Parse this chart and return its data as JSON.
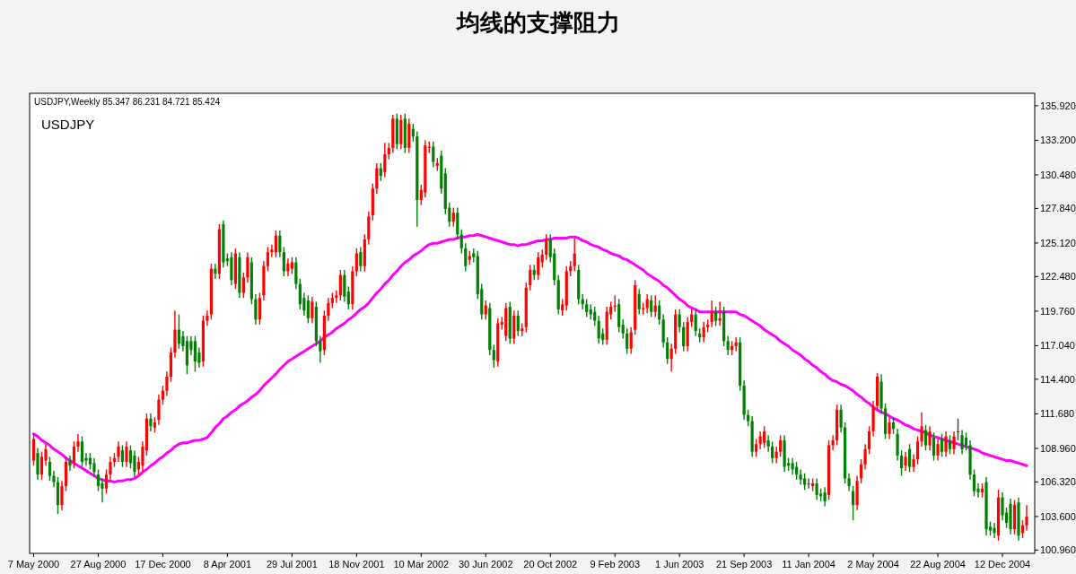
{
  "chart_data": {
    "type": "candlestick",
    "title": "均线的支撑阻力",
    "annotations": [
      "USDJPY,Weekly  85.347 86.231 84.721 85.424",
      "USDJPY"
    ],
    "ylim": [
      100.7,
      136.9
    ],
    "yticks": [
      {
        "value": 135.92,
        "label": "135.920"
      },
      {
        "value": 133.2,
        "label": "133.200"
      },
      {
        "value": 130.48,
        "label": "130.480"
      },
      {
        "value": 127.84,
        "label": "127.840"
      },
      {
        "value": 125.12,
        "label": "125.120"
      },
      {
        "value": 122.48,
        "label": "122.480"
      },
      {
        "value": 119.76,
        "label": "119.760"
      },
      {
        "value": 117.04,
        "label": "117.040"
      },
      {
        "value": 114.4,
        "label": "114.400"
      },
      {
        "value": 111.68,
        "label": "111.680"
      },
      {
        "value": 108.96,
        "label": "108.960"
      },
      {
        "value": 106.32,
        "label": "106.320"
      },
      {
        "value": 103.6,
        "label": "103.600"
      },
      {
        "value": 100.96,
        "label": "100.960"
      }
    ],
    "categories": [
      "7 May 2000",
      null,
      null,
      null,
      null,
      null,
      null,
      null,
      null,
      null,
      null,
      null,
      null,
      null,
      null,
      null,
      "27 Aug 2000",
      null,
      null,
      null,
      null,
      null,
      null,
      null,
      null,
      null,
      null,
      null,
      null,
      null,
      null,
      null,
      "17 Dec 2000",
      null,
      null,
      null,
      null,
      null,
      null,
      null,
      null,
      null,
      null,
      null,
      null,
      null,
      null,
      null,
      "8 Apr 2001",
      null,
      null,
      null,
      null,
      null,
      null,
      null,
      null,
      null,
      null,
      null,
      null,
      null,
      null,
      null,
      "29 Jul 2001",
      null,
      null,
      null,
      null,
      null,
      null,
      null,
      null,
      null,
      null,
      null,
      null,
      null,
      null,
      null,
      "18 Nov 2001",
      null,
      null,
      null,
      null,
      null,
      null,
      null,
      null,
      null,
      null,
      null,
      null,
      null,
      null,
      null,
      "10 Mar 2002",
      null,
      null,
      null,
      null,
      null,
      null,
      null,
      null,
      null,
      null,
      null,
      null,
      null,
      null,
      null,
      "30 Jun 2002",
      null,
      null,
      null,
      null,
      null,
      null,
      null,
      null,
      null,
      null,
      null,
      null,
      null,
      null,
      null,
      "20 Oct 2002",
      null,
      null,
      null,
      null,
      null,
      null,
      null,
      null,
      null,
      null,
      null,
      null,
      null,
      null,
      null,
      "9 Feb 2003",
      null,
      null,
      null,
      null,
      null,
      null,
      null,
      null,
      null,
      null,
      null,
      null,
      null,
      null,
      null,
      "1 Jun 2003",
      null,
      null,
      null,
      null,
      null,
      null,
      null,
      null,
      null,
      null,
      null,
      null,
      null,
      null,
      null,
      "21 Sep 2003",
      null,
      null,
      null,
      null,
      null,
      null,
      null,
      null,
      null,
      null,
      null,
      null,
      null,
      null,
      null,
      "11 Jan 2004",
      null,
      null,
      null,
      null,
      null,
      null,
      null,
      null,
      null,
      null,
      null,
      null,
      null,
      null,
      null,
      "2 May 2004",
      null,
      null,
      null,
      null,
      null,
      null,
      null,
      null,
      null,
      null,
      null,
      null,
      null,
      null,
      null,
      "22 Aug 2004",
      null,
      null,
      null,
      null,
      null,
      null,
      null,
      null,
      null,
      null,
      null,
      null,
      null,
      null,
      null,
      "12 Dec 2004",
      null,
      null,
      null,
      null,
      null,
      null
    ],
    "ohlc": [
      [
        108.0,
        110.1,
        107.6,
        109.7
      ],
      [
        108.6,
        109.0,
        106.5,
        106.9
      ],
      [
        106.9,
        108.7,
        106.5,
        108.3
      ],
      [
        108.0,
        109.3,
        107.6,
        108.9
      ],
      [
        107.9,
        108.3,
        106.4,
        106.8
      ],
      [
        106.8,
        107.2,
        105.9,
        106.3
      ],
      [
        106.3,
        106.7,
        103.8,
        104.5
      ],
      [
        104.5,
        106.4,
        104.1,
        106.0
      ],
      [
        106.0,
        108.3,
        105.6,
        107.9
      ],
      [
        108.0,
        108.4,
        107.2,
        107.6
      ],
      [
        107.8,
        109.5,
        107.4,
        109.1
      ],
      [
        109.1,
        110.1,
        108.7,
        109.5
      ],
      [
        109.5,
        109.9,
        107.5,
        107.9
      ],
      [
        108.2,
        108.6,
        107.6,
        108.0
      ],
      [
        108.2,
        108.6,
        107.3,
        107.7
      ],
      [
        107.8,
        108.2,
        106.7,
        107.1
      ],
      [
        106.9,
        107.3,
        105.6,
        106.0
      ],
      [
        106.2,
        106.6,
        104.7,
        105.8
      ],
      [
        105.8,
        107.3,
        105.4,
        106.9
      ],
      [
        106.9,
        108.3,
        106.5,
        107.9
      ],
      [
        107.9,
        108.6,
        107.5,
        108.2
      ],
      [
        108.3,
        109.5,
        107.9,
        109.1
      ],
      [
        108.8,
        109.2,
        107.5,
        107.9
      ],
      [
        107.9,
        109.5,
        107.5,
        109.1
      ],
      [
        108.8,
        109.2,
        107.4,
        107.8
      ],
      [
        108.4,
        108.8,
        106.7,
        107.1
      ],
      [
        107.3,
        108.3,
        106.9,
        107.9
      ],
      [
        107.6,
        109.5,
        107.2,
        109.1
      ],
      [
        108.8,
        111.7,
        108.4,
        111.3
      ],
      [
        111.3,
        111.7,
        110.3,
        110.7
      ],
      [
        110.6,
        111.4,
        110.2,
        111.0
      ],
      [
        111.2,
        113.2,
        110.8,
        112.8
      ],
      [
        112.8,
        113.9,
        112.4,
        113.5
      ],
      [
        113.5,
        115.0,
        113.1,
        114.6
      ],
      [
        114.6,
        116.9,
        114.2,
        116.5
      ],
      [
        116.5,
        119.8,
        116.1,
        118.3
      ],
      [
        118.3,
        119.5,
        116.8,
        117.2
      ],
      [
        117.8,
        118.2,
        116.6,
        117.0
      ],
      [
        117.4,
        117.8,
        114.8,
        115.5
      ],
      [
        117.4,
        117.8,
        116.3,
        116.7
      ],
      [
        117.4,
        117.8,
        115.0,
        115.8
      ],
      [
        116.5,
        116.9,
        115.3,
        115.7
      ],
      [
        115.8,
        119.4,
        115.4,
        119.0
      ],
      [
        119.0,
        119.8,
        118.6,
        119.4
      ],
      [
        119.5,
        123.5,
        119.1,
        123.1
      ],
      [
        123.1,
        123.5,
        122.3,
        122.7
      ],
      [
        122.7,
        126.6,
        122.3,
        126.2
      ],
      [
        126.6,
        126.9,
        123.2,
        123.6
      ],
      [
        123.9,
        124.3,
        123.3,
        123.7
      ],
      [
        124.0,
        124.4,
        121.8,
        122.2
      ],
      [
        121.9,
        124.7,
        121.5,
        124.3
      ],
      [
        124.0,
        124.4,
        120.8,
        121.2
      ],
      [
        121.2,
        122.8,
        120.8,
        122.4
      ],
      [
        122.4,
        124.4,
        122.0,
        124.0
      ],
      [
        123.6,
        124.0,
        120.3,
        120.7
      ],
      [
        120.7,
        121.1,
        118.7,
        119.1
      ],
      [
        119.1,
        121.2,
        118.7,
        120.8
      ],
      [
        121.0,
        123.7,
        120.6,
        123.3
      ],
      [
        123.3,
        124.8,
        122.9,
        124.4
      ],
      [
        124.4,
        125.0,
        124.0,
        124.6
      ],
      [
        124.4,
        126.1,
        124.0,
        125.7
      ],
      [
        125.7,
        126.1,
        124.0,
        124.4
      ],
      [
        124.4,
        124.8,
        122.5,
        122.9
      ],
      [
        122.9,
        123.9,
        122.5,
        123.5
      ],
      [
        123.1,
        124.0,
        122.7,
        123.6
      ],
      [
        123.6,
        124.0,
        121.5,
        121.9
      ],
      [
        121.9,
        122.3,
        119.9,
        120.3
      ],
      [
        120.8,
        121.2,
        119.4,
        119.8
      ],
      [
        120.6,
        121.0,
        118.8,
        119.2
      ],
      [
        119.2,
        120.9,
        118.8,
        120.5
      ],
      [
        120.1,
        120.5,
        117.0,
        117.4
      ],
      [
        117.4,
        117.8,
        115.7,
        116.6
      ],
      [
        116.7,
        119.8,
        116.3,
        119.4
      ],
      [
        119.4,
        120.8,
        119.0,
        120.4
      ],
      [
        120.4,
        121.2,
        120.0,
        120.8
      ],
      [
        120.8,
        121.4,
        120.4,
        121.0
      ],
      [
        121.0,
        123.0,
        120.6,
        122.6
      ],
      [
        122.6,
        123.0,
        120.5,
        120.9
      ],
      [
        121.3,
        121.7,
        119.9,
        120.3
      ],
      [
        120.3,
        123.3,
        119.9,
        122.9
      ],
      [
        122.9,
        124.7,
        122.5,
        124.3
      ],
      [
        124.4,
        124.8,
        122.9,
        123.3
      ],
      [
        123.3,
        125.8,
        122.9,
        125.4
      ],
      [
        125.4,
        127.6,
        125.0,
        127.2
      ],
      [
        127.3,
        129.8,
        126.9,
        129.4
      ],
      [
        129.4,
        131.4,
        129.0,
        131.0
      ],
      [
        131.0,
        131.4,
        130.0,
        130.4
      ],
      [
        130.7,
        133.0,
        130.3,
        132.1
      ],
      [
        132.1,
        133.0,
        131.7,
        132.6
      ],
      [
        132.6,
        135.2,
        132.2,
        134.9
      ],
      [
        134.9,
        135.3,
        132.5,
        132.9
      ],
      [
        132.9,
        135.2,
        132.5,
        134.8
      ],
      [
        134.9,
        135.3,
        132.2,
        132.6
      ],
      [
        132.6,
        134.9,
        132.2,
        134.5
      ],
      [
        134.1,
        134.5,
        133.1,
        133.5
      ],
      [
        133.5,
        133.9,
        126.4,
        128.5
      ],
      [
        128.5,
        129.7,
        128.1,
        129.3
      ],
      [
        129.1,
        133.2,
        128.7,
        132.8
      ],
      [
        132.6,
        133.1,
        132.2,
        132.7
      ],
      [
        132.7,
        133.1,
        131.1,
        131.5
      ],
      [
        131.2,
        131.8,
        130.8,
        131.4
      ],
      [
        132.0,
        132.4,
        129.0,
        129.4
      ],
      [
        130.6,
        131.0,
        127.4,
        127.8
      ],
      [
        127.9,
        128.3,
        126.4,
        126.8
      ],
      [
        126.8,
        127.9,
        126.4,
        127.5
      ],
      [
        127.5,
        127.9,
        125.4,
        125.8
      ],
      [
        125.8,
        126.2,
        124.3,
        124.7
      ],
      [
        124.7,
        125.1,
        122.9,
        123.3
      ],
      [
        123.8,
        124.5,
        123.4,
        124.1
      ],
      [
        124.3,
        124.7,
        123.6,
        124.0
      ],
      [
        124.1,
        124.5,
        120.7,
        121.1
      ],
      [
        121.5,
        121.9,
        119.1,
        119.5
      ],
      [
        119.5,
        120.6,
        119.1,
        120.2
      ],
      [
        120.0,
        120.4,
        116.3,
        116.7
      ],
      [
        116.7,
        117.1,
        115.3,
        115.9
      ],
      [
        115.8,
        119.2,
        115.4,
        118.8
      ],
      [
        118.7,
        119.3,
        118.3,
        118.9
      ],
      [
        117.8,
        120.4,
        117.4,
        120.0
      ],
      [
        120.1,
        120.5,
        117.2,
        117.6
      ],
      [
        117.6,
        119.8,
        117.2,
        119.4
      ],
      [
        119.4,
        119.8,
        117.8,
        118.2
      ],
      [
        118.2,
        118.8,
        117.8,
        118.4
      ],
      [
        118.5,
        122.0,
        118.1,
        121.6
      ],
      [
        121.8,
        123.4,
        121.4,
        123.0
      ],
      [
        123.0,
        123.4,
        122.2,
        122.6
      ],
      [
        122.6,
        124.4,
        122.2,
        124.0
      ],
      [
        123.6,
        124.6,
        123.2,
        124.2
      ],
      [
        124.2,
        125.8,
        123.8,
        125.4
      ],
      [
        125.4,
        125.8,
        123.6,
        124.0
      ],
      [
        124.3,
        124.7,
        121.8,
        122.2
      ],
      [
        122.2,
        122.6,
        119.5,
        119.9
      ],
      [
        119.8,
        120.7,
        119.4,
        120.3
      ],
      [
        120.2,
        123.3,
        119.8,
        122.9
      ],
      [
        122.9,
        123.7,
        122.5,
        123.3
      ],
      [
        123.3,
        125.5,
        122.9,
        124.3
      ],
      [
        123.0,
        123.4,
        120.3,
        120.7
      ],
      [
        120.7,
        121.1,
        119.9,
        120.3
      ],
      [
        120.3,
        120.7,
        119.3,
        119.7
      ],
      [
        119.9,
        120.3,
        119.1,
        119.5
      ],
      [
        119.7,
        120.1,
        118.6,
        119.0
      ],
      [
        119.0,
        119.4,
        117.2,
        117.6
      ],
      [
        118.0,
        118.4,
        117.1,
        117.5
      ],
      [
        117.5,
        120.1,
        117.1,
        119.7
      ],
      [
        119.5,
        120.5,
        119.1,
        120.1
      ],
      [
        120.1,
        121.0,
        119.7,
        120.2
      ],
      [
        120.3,
        120.7,
        118.1,
        118.5
      ],
      [
        118.7,
        119.1,
        117.6,
        118.0
      ],
      [
        118.0,
        118.4,
        116.4,
        116.8
      ],
      [
        116.8,
        118.5,
        116.4,
        118.1
      ],
      [
        118.3,
        122.2,
        117.9,
        121.8
      ],
      [
        121.1,
        121.5,
        119.5,
        119.9
      ],
      [
        119.9,
        120.4,
        119.5,
        120.0
      ],
      [
        120.0,
        121.1,
        119.6,
        120.7
      ],
      [
        120.6,
        121.0,
        119.3,
        119.7
      ],
      [
        119.7,
        121.0,
        119.3,
        120.2
      ],
      [
        120.2,
        120.6,
        118.7,
        119.1
      ],
      [
        119.1,
        119.5,
        116.9,
        117.3
      ],
      [
        117.3,
        117.7,
        115.6,
        116.0
      ],
      [
        116.0,
        117.2,
        115.0,
        116.8
      ],
      [
        116.8,
        119.9,
        116.4,
        119.5
      ],
      [
        119.5,
        119.9,
        118.1,
        118.5
      ],
      [
        118.5,
        118.9,
        116.6,
        117.0
      ],
      [
        117.0,
        119.3,
        116.6,
        118.9
      ],
      [
        118.9,
        119.9,
        118.5,
        119.5
      ],
      [
        119.5,
        119.9,
        117.8,
        118.2
      ],
      [
        118.0,
        118.4,
        117.3,
        117.7
      ],
      [
        117.7,
        118.9,
        117.3,
        118.5
      ],
      [
        118.5,
        119.1,
        118.1,
        118.7
      ],
      [
        118.9,
        120.6,
        118.5,
        119.7
      ],
      [
        119.7,
        120.1,
        118.6,
        119.0
      ],
      [
        119.0,
        120.5,
        118.6,
        119.2
      ],
      [
        119.7,
        120.1,
        117.0,
        117.4
      ],
      [
        117.4,
        117.8,
        116.3,
        116.7
      ],
      [
        116.7,
        117.4,
        116.3,
        117.0
      ],
      [
        117.0,
        117.7,
        116.6,
        117.3
      ],
      [
        117.3,
        117.7,
        113.5,
        113.9
      ],
      [
        113.9,
        114.3,
        111.2,
        111.6
      ],
      [
        111.6,
        112.0,
        110.7,
        111.1
      ],
      [
        111.1,
        111.5,
        108.3,
        108.7
      ],
      [
        108.7,
        109.7,
        108.3,
        109.3
      ],
      [
        109.3,
        110.3,
        108.9,
        109.9
      ],
      [
        109.4,
        110.7,
        109.0,
        110.3
      ],
      [
        109.6,
        110.0,
        108.7,
        109.1
      ],
      [
        109.1,
        109.5,
        107.8,
        108.2
      ],
      [
        108.2,
        109.1,
        107.8,
        108.7
      ],
      [
        108.7,
        110.0,
        108.3,
        109.6
      ],
      [
        109.6,
        110.0,
        107.1,
        107.5
      ],
      [
        107.8,
        108.2,
        107.2,
        107.6
      ],
      [
        107.8,
        108.2,
        106.9,
        107.3
      ],
      [
        107.5,
        107.9,
        106.5,
        106.9
      ],
      [
        106.9,
        107.3,
        106.1,
        106.5
      ],
      [
        106.6,
        107.0,
        105.7,
        106.1
      ],
      [
        106.2,
        106.6,
        105.8,
        106.2
      ],
      [
        106.0,
        106.6,
        105.6,
        106.2
      ],
      [
        106.2,
        106.6,
        104.9,
        105.3
      ],
      [
        105.4,
        105.8,
        104.8,
        105.2
      ],
      [
        105.5,
        105.9,
        104.4,
        104.8
      ],
      [
        105.3,
        109.6,
        104.9,
        109.2
      ],
      [
        109.2,
        110.0,
        108.8,
        109.6
      ],
      [
        109.6,
        112.4,
        109.2,
        112.0
      ],
      [
        112.0,
        112.4,
        110.2,
        110.6
      ],
      [
        110.6,
        111.0,
        106.2,
        106.6
      ],
      [
        106.6,
        107.0,
        105.6,
        106.0
      ],
      [
        105.6,
        106.0,
        103.3,
        104.5
      ],
      [
        104.5,
        106.8,
        104.1,
        106.4
      ],
      [
        106.6,
        108.1,
        106.2,
        107.7
      ],
      [
        107.7,
        109.3,
        107.3,
        108.9
      ],
      [
        108.9,
        110.7,
        108.5,
        110.3
      ],
      [
        110.3,
        112.7,
        109.9,
        112.3
      ],
      [
        112.3,
        114.9,
        111.9,
        114.6
      ],
      [
        114.2,
        114.8,
        111.7,
        112.1
      ],
      [
        112.1,
        112.5,
        109.7,
        110.1
      ],
      [
        110.1,
        111.4,
        109.7,
        111.0
      ],
      [
        111.0,
        111.4,
        110.1,
        110.5
      ],
      [
        110.1,
        110.5,
        108.0,
        108.4
      ],
      [
        108.4,
        108.8,
        106.8,
        107.4
      ],
      [
        107.6,
        108.7,
        107.2,
        108.3
      ],
      [
        108.9,
        109.3,
        107.1,
        107.5
      ],
      [
        107.5,
        108.5,
        107.1,
        108.1
      ],
      [
        108.1,
        109.9,
        107.7,
        109.5
      ],
      [
        109.5,
        111.8,
        109.1,
        110.7
      ],
      [
        110.4,
        110.8,
        108.8,
        109.2
      ],
      [
        109.2,
        110.7,
        108.8,
        110.3
      ],
      [
        109.8,
        110.2,
        108.0,
        108.4
      ],
      [
        108.4,
        109.7,
        108.0,
        109.3
      ],
      [
        109.7,
        110.1,
        108.3,
        108.7
      ],
      [
        108.7,
        110.3,
        108.3,
        109.9
      ],
      [
        109.6,
        110.0,
        108.5,
        108.9
      ],
      [
        108.9,
        110.3,
        108.5,
        109.9
      ],
      [
        110.3,
        111.3,
        109.6,
        110.3
      ],
      [
        110.0,
        110.4,
        108.5,
        108.9
      ],
      [
        109.8,
        110.2,
        108.8,
        109.2
      ],
      [
        109.2,
        109.6,
        106.5,
        106.9
      ],
      [
        106.9,
        107.3,
        105.2,
        105.6
      ],
      [
        105.8,
        106.2,
        105.1,
        105.5
      ],
      [
        105.5,
        106.2,
        105.1,
        105.8
      ],
      [
        106.3,
        106.7,
        102.1,
        102.6
      ],
      [
        102.8,
        103.2,
        102.1,
        102.5
      ],
      [
        102.7,
        103.1,
        101.9,
        102.3
      ],
      [
        102.1,
        105.7,
        101.7,
        105.1
      ],
      [
        105.1,
        105.5,
        103.3,
        103.7
      ],
      [
        103.9,
        104.3,
        102.7,
        103.1
      ],
      [
        104.6,
        105.0,
        102.2,
        102.6
      ],
      [
        102.6,
        104.9,
        102.2,
        104.5
      ],
      [
        104.7,
        105.1,
        101.7,
        102.1
      ],
      [
        102.3,
        103.3,
        101.9,
        102.9
      ],
      [
        102.9,
        104.5,
        102.5,
        103.6
      ]
    ],
    "colors": [
      "#ff0000",
      "#008000",
      "#ff0000",
      "#ff0000",
      "#008000",
      "#008000",
      "#008000",
      "#ff0000",
      "#ff0000",
      "#008000",
      "#ff0000",
      "#ff0000",
      "#008000",
      "#008000",
      "#008000",
      "#008000",
      "#008000",
      "#008000",
      "#ff0000",
      "#ff0000",
      "#ff0000",
      "#ff0000",
      "#008000",
      "#ff0000",
      "#008000",
      "#008000",
      "#ff0000",
      "#ff0000",
      "#ff0000",
      "#008000",
      "#ff0000",
      "#ff0000",
      "#ff0000",
      "#ff0000",
      "#ff0000",
      "#ff0000",
      "#008000",
      "#008000",
      "#008000",
      "#008000",
      "#008000",
      "#008000",
      "#ff0000",
      "#ff0000",
      "#ff0000",
      "#008000",
      "#ff0000",
      "#008000",
      "#008000",
      "#008000",
      "#ff0000",
      "#008000",
      "#ff0000",
      "#ff0000",
      "#008000",
      "#008000",
      "#ff0000",
      "#ff0000",
      "#ff0000",
      "#ff0000",
      "#ff0000",
      "#008000",
      "#008000",
      "#ff0000",
      "#ff0000",
      "#008000",
      "#008000",
      "#008000",
      "#008000",
      "#ff0000",
      "#008000",
      "#008000",
      "#ff0000",
      "#ff0000",
      "#ff0000",
      "#ff0000",
      "#ff0000",
      "#008000",
      "#008000",
      "#ff0000",
      "#ff0000",
      "#008000",
      "#ff0000",
      "#ff0000",
      "#ff0000",
      "#ff0000",
      "#008000",
      "#ff0000",
      "#ff0000",
      "#ff0000",
      "#008000",
      "#ff0000",
      "#008000",
      "#ff0000",
      "#008000",
      "#008000",
      "#ff0000",
      "#ff0000",
      "#ff0000",
      "#008000",
      "#ff0000",
      "#008000",
      "#008000",
      "#008000",
      "#ff0000",
      "#008000",
      "#008000",
      "#008000",
      "#ff0000",
      "#008000",
      "#008000",
      "#008000",
      "#ff0000",
      "#008000",
      "#008000",
      "#ff0000",
      "#ff0000",
      "#ff0000",
      "#008000",
      "#ff0000",
      "#008000",
      "#ff0000",
      "#ff0000",
      "#ff0000",
      "#008000",
      "#ff0000",
      "#ff0000",
      "#ff0000",
      "#008000",
      "#008000",
      "#008000",
      "#ff0000",
      "#ff0000",
      "#ff0000",
      "#ff0000",
      "#008000",
      "#008000",
      "#008000",
      "#008000",
      "#008000",
      "#008000",
      "#008000",
      "#ff0000",
      "#ff0000",
      "#ff0000",
      "#008000",
      "#008000",
      "#008000",
      "#ff0000",
      "#ff0000",
      "#008000",
      "#ff0000",
      "#ff0000",
      "#008000",
      "#ff0000",
      "#008000",
      "#008000",
      "#008000",
      "#ff0000",
      "#ff0000",
      "#008000",
      "#008000",
      "#ff0000",
      "#ff0000",
      "#008000",
      "#008000",
      "#ff0000",
      "#ff0000",
      "#ff0000",
      "#008000",
      "#ff0000",
      "#008000",
      "#008000",
      "#ff0000",
      "#ff0000",
      "#008000",
      "#008000",
      "#008000",
      "#008000",
      "#ff0000",
      "#ff0000",
      "#ff0000",
      "#008000",
      "#008000",
      "#ff0000",
      "#ff0000",
      "#008000",
      "#008000",
      "#008000",
      "#008000",
      "#008000",
      "#008000",
      "#404040",
      "#ff0000",
      "#008000",
      "#008000",
      "#008000",
      "#ff0000",
      "#ff0000",
      "#ff0000",
      "#008000",
      "#008000",
      "#008000",
      "#008000",
      "#ff0000",
      "#ff0000",
      "#ff0000",
      "#ff0000",
      "#ff0000",
      "#ff0000",
      "#008000",
      "#008000",
      "#ff0000",
      "#008000",
      "#008000",
      "#008000",
      "#ff0000",
      "#008000",
      "#ff0000",
      "#ff0000",
      "#ff0000",
      "#008000",
      "#ff0000",
      "#008000",
      "#ff0000",
      "#008000",
      "#ff0000",
      "#008000",
      "#ff0000",
      "#404040",
      "#008000",
      "#008000",
      "#008000",
      "#008000",
      "#008000",
      "#ff0000",
      "#008000",
      "#008000",
      "#008000",
      "#ff0000",
      "#008000",
      "#008000",
      "#008000",
      "#ff0000",
      "#008000",
      "#ff0000",
      "#ff0000"
    ],
    "series": [
      {
        "type": "line",
        "color": "#ff00ff",
        "values": [
          110.1,
          109.9,
          109.6,
          109.4,
          109.2,
          108.9,
          108.7,
          108.5,
          108.2,
          108.0,
          107.8,
          107.6,
          107.4,
          107.2,
          107.0,
          106.8,
          106.6,
          106.5,
          106.4,
          106.4,
          106.3,
          106.4,
          106.4,
          106.5,
          106.5,
          106.6,
          106.8,
          107.1,
          107.3,
          107.6,
          107.8,
          108.1,
          108.3,
          108.6,
          108.8,
          109.1,
          109.3,
          109.4,
          109.4,
          109.5,
          109.6,
          109.6,
          109.7,
          109.8,
          110.2,
          110.6,
          110.9,
          111.3,
          111.5,
          111.8,
          112.0,
          112.3,
          112.5,
          112.7,
          113.0,
          113.2,
          113.5,
          113.9,
          114.2,
          114.5,
          114.8,
          115.2,
          115.5,
          115.8,
          116.0,
          116.2,
          116.4,
          116.6,
          116.8,
          117.0,
          117.2,
          117.4,
          117.7,
          117.9,
          118.1,
          118.4,
          118.6,
          118.8,
          119.1,
          119.3,
          119.6,
          119.9,
          120.1,
          120.4,
          120.8,
          121.2,
          121.5,
          121.9,
          122.2,
          122.6,
          122.9,
          123.3,
          123.6,
          123.8,
          124.1,
          124.3,
          124.5,
          124.8,
          125.0,
          125.1,
          125.1,
          125.2,
          125.3,
          125.4,
          125.4,
          125.5,
          125.6,
          125.6,
          125.7,
          125.7,
          125.8,
          125.7,
          125.6,
          125.5,
          125.4,
          125.3,
          125.2,
          125.1,
          125.0,
          125.0,
          124.9,
          125.0,
          125.0,
          125.1,
          125.2,
          125.3,
          125.3,
          125.4,
          125.4,
          125.5,
          125.5,
          125.5,
          125.5,
          125.6,
          125.6,
          125.5,
          125.3,
          125.2,
          125.0,
          124.9,
          124.8,
          124.6,
          124.5,
          124.3,
          124.2,
          124.1,
          123.9,
          123.8,
          123.6,
          123.4,
          123.2,
          123.0,
          122.7,
          122.5,
          122.3,
          122.1,
          121.8,
          121.6,
          121.3,
          121.0,
          120.7,
          120.5,
          120.2,
          120.0,
          119.9,
          119.7,
          119.7,
          119.7,
          119.7,
          119.7,
          119.7,
          119.7,
          119.7,
          119.7,
          119.7,
          119.5,
          119.4,
          119.2,
          119.0,
          118.8,
          118.6,
          118.3,
          118.1,
          117.9,
          117.7,
          117.4,
          117.2,
          117.0,
          116.7,
          116.5,
          116.3,
          116.0,
          115.8,
          115.5,
          115.3,
          115.0,
          114.8,
          114.5,
          114.3,
          114.2,
          114.0,
          113.9,
          113.7,
          113.5,
          113.2,
          113.0,
          112.7,
          112.5,
          112.2,
          112.0,
          111.8,
          111.7,
          111.5,
          111.3,
          111.2,
          111.0,
          110.8,
          110.7,
          110.5,
          110.4,
          110.3,
          110.2,
          110.0,
          109.9,
          109.8,
          109.7,
          109.6,
          109.5,
          109.4,
          109.3,
          109.2,
          109.1,
          109.0,
          108.9,
          108.8,
          108.6,
          108.5,
          108.4,
          108.3,
          108.2,
          108.1,
          108.0,
          108.0,
          107.9,
          107.8,
          107.7,
          107.6
        ]
      }
    ]
  }
}
